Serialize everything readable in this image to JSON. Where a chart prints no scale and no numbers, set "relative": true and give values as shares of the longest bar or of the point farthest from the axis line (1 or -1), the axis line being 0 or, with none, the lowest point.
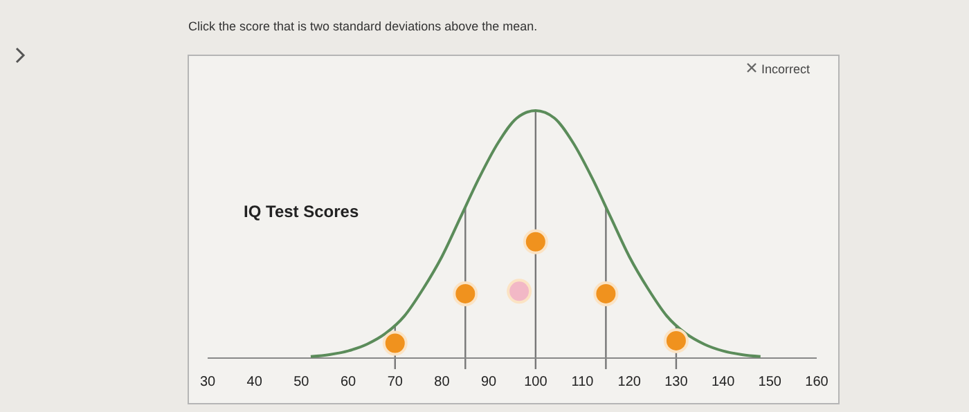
{
  "chart_data": {
    "type": "line",
    "title": "Click the score that is two standard deviations above the mean.",
    "subtitle": "IQ Test Scores",
    "annotations": [
      "Incorrect"
    ],
    "relative": true,
    "xlim": [
      30,
      160
    ],
    "xticks": [
      30,
      40,
      50,
      60,
      70,
      80,
      90,
      100,
      110,
      120,
      130,
      140,
      150,
      160
    ],
    "marker": "circle",
    "line_style": "solid",
    "series": [
      {
        "color": "#5b8c5a",
        "marker": "none",
        "x": [
          52,
          56,
          60,
          64,
          68,
          72,
          76,
          80,
          84,
          88,
          92,
          96,
          100,
          104,
          108,
          112,
          116,
          120,
          124,
          128,
          132,
          136,
          140,
          144,
          148
        ],
        "values": [
          0.006,
          0.014,
          0.029,
          0.056,
          0.1,
          0.17,
          0.28,
          0.41,
          0.57,
          0.73,
          0.87,
          0.97,
          1,
          0.97,
          0.87,
          0.73,
          0.57,
          0.41,
          0.28,
          0.17,
          0.1,
          0.056,
          0.029,
          0.014,
          0.006
        ]
      },
      {
        "type": "scatter",
        "color": "#f0921e",
        "x": [
          70,
          85,
          100,
          115,
          130
        ],
        "values": [
          0.06,
          0.26,
          0.47,
          0.26,
          0.07
        ]
      },
      {
        "type": "scatter",
        "color": "#f2b8c6",
        "x": [
          96.5
        ],
        "values": [
          0.27
        ]
      }
    ],
    "ref_lines": [
      {
        "axis": "x",
        "value": 70,
        "color": "#777777"
      },
      {
        "axis": "x",
        "value": 85,
        "color": "#777777"
      },
      {
        "axis": "x",
        "value": 100,
        "color": "#777777"
      },
      {
        "axis": "x",
        "value": 115,
        "color": "#777777"
      },
      {
        "axis": "x",
        "value": 130,
        "color": "#777777"
      }
    ]
  }
}
